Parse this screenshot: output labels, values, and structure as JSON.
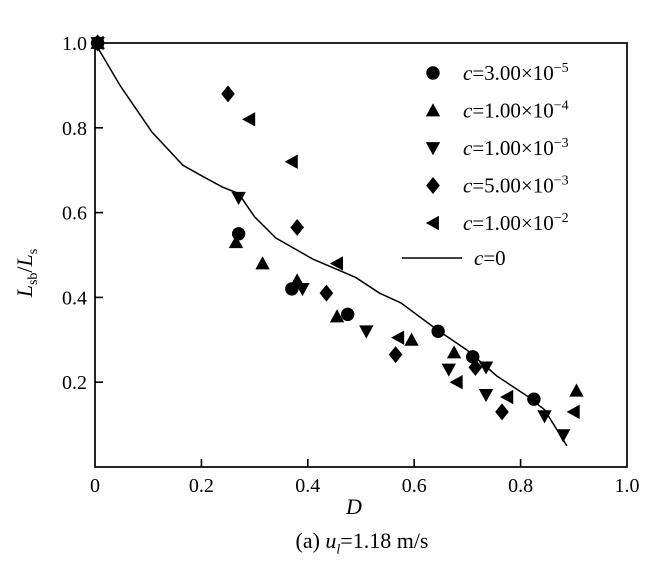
{
  "figure": {
    "caption": {
      "prefix": "(a) ",
      "var": "u",
      "sub": "l",
      "rest": "=1.18 m/s"
    }
  },
  "colors": {
    "foreground": "#000000",
    "background": "#ffffff"
  },
  "chart_data": {
    "type": "scatter",
    "title": "",
    "xlabel": "D",
    "ylabel_parts": {
      "L1": "L",
      "sub1": "sb",
      "slash": "/",
      "L2": "L",
      "sub2": "s"
    },
    "xlim": [
      0,
      1.0
    ],
    "ylim": [
      0,
      1.0
    ],
    "x_tick_values": [
      0,
      0.2,
      0.4,
      0.6,
      0.8,
      1.0
    ],
    "x_tick_labels": [
      "0",
      "0.2",
      "0.4",
      "0.6",
      "0.8",
      "1.0"
    ],
    "y_tick_values": [
      0.2,
      0.4,
      0.6,
      0.8,
      1.0
    ],
    "y_tick_labels": [
      "0.2",
      "0.4",
      "0.6",
      "0.8",
      "1.0"
    ],
    "grid": false,
    "legend_position": "upper-right-inside",
    "series": [
      {
        "marker": "circle",
        "label": {
          "var": "c",
          "base": "=3.00×10",
          "exp": "−5"
        },
        "points": [
          [
            0.005,
            1.0
          ],
          [
            0.27,
            0.55
          ],
          [
            0.37,
            0.42
          ],
          [
            0.475,
            0.36
          ],
          [
            0.645,
            0.32
          ],
          [
            0.71,
            0.26
          ],
          [
            0.825,
            0.16
          ]
        ]
      },
      {
        "marker": "triangle-up",
        "label": {
          "var": "c",
          "base": "=1.00×10",
          "exp": "−4"
        },
        "points": [
          [
            0.005,
            1.0
          ],
          [
            0.265,
            0.53
          ],
          [
            0.315,
            0.48
          ],
          [
            0.38,
            0.44
          ],
          [
            0.455,
            0.355
          ],
          [
            0.595,
            0.3
          ],
          [
            0.675,
            0.27
          ],
          [
            0.905,
            0.18
          ]
        ]
      },
      {
        "marker": "triangle-down",
        "label": {
          "var": "c",
          "base": "=1.00×10",
          "exp": "−3"
        },
        "points": [
          [
            0.005,
            1.0
          ],
          [
            0.27,
            0.635
          ],
          [
            0.39,
            0.42
          ],
          [
            0.51,
            0.32
          ],
          [
            0.665,
            0.23
          ],
          [
            0.735,
            0.235
          ],
          [
            0.735,
            0.17
          ],
          [
            0.845,
            0.12
          ],
          [
            0.88,
            0.075
          ]
        ]
      },
      {
        "marker": "diamond",
        "label": {
          "var": "c",
          "base": "=5.00×10",
          "exp": "−3"
        },
        "points": [
          [
            0.005,
            1.0
          ],
          [
            0.25,
            0.88
          ],
          [
            0.38,
            0.565
          ],
          [
            0.435,
            0.41
          ],
          [
            0.565,
            0.265
          ],
          [
            0.715,
            0.235
          ],
          [
            0.765,
            0.13
          ]
        ]
      },
      {
        "marker": "triangle-left",
        "label": {
          "var": "c",
          "base": "=1.00×10",
          "exp": "−2"
        },
        "points": [
          [
            0.005,
            1.0
          ],
          [
            0.29,
            0.82
          ],
          [
            0.37,
            0.72
          ],
          [
            0.455,
            0.48
          ],
          [
            0.57,
            0.305
          ],
          [
            0.68,
            0.2
          ],
          [
            0.775,
            0.165
          ],
          [
            0.9,
            0.13
          ]
        ]
      }
    ],
    "line_series": {
      "label": {
        "var": "c",
        "base": "=0",
        "exp": ""
      },
      "points": [
        [
          0.0,
          1.0
        ],
        [
          0.047,
          0.9
        ],
        [
          0.107,
          0.79
        ],
        [
          0.165,
          0.712
        ],
        [
          0.2,
          0.687
        ],
        [
          0.24,
          0.66
        ],
        [
          0.27,
          0.645
        ],
        [
          0.3,
          0.59
        ],
        [
          0.34,
          0.54
        ],
        [
          0.41,
          0.49
        ],
        [
          0.49,
          0.447
        ],
        [
          0.535,
          0.41
        ],
        [
          0.575,
          0.387
        ],
        [
          0.645,
          0.322
        ],
        [
          0.7,
          0.275
        ],
        [
          0.755,
          0.215
        ],
        [
          0.815,
          0.165
        ],
        [
          0.845,
          0.135
        ],
        [
          0.887,
          0.05
        ]
      ]
    }
  }
}
